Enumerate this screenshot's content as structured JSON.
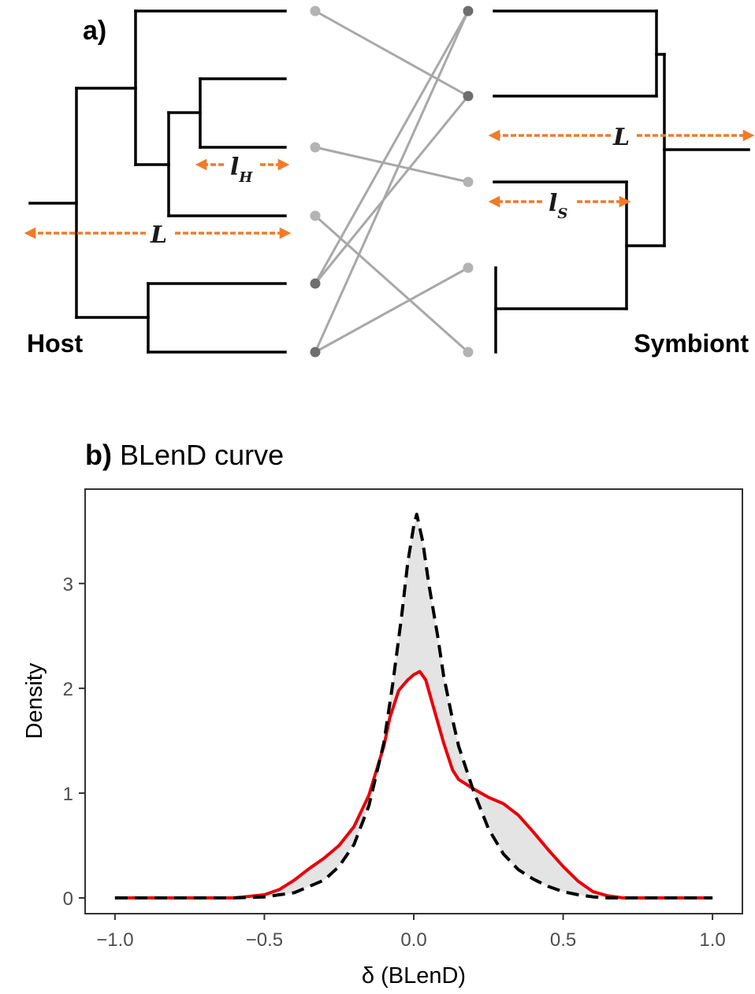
{
  "panel_a": {
    "label": "a)",
    "host_label": "Host",
    "symbiont_label": "Symbiont",
    "host_branch_label": "l",
    "host_branch_subscript": "H",
    "symbiont_branch_label": "l",
    "symbiont_branch_subscript": "S",
    "total_length_label": "L",
    "colors": {
      "tree": "#000000",
      "arrow": "#f07b2a",
      "link": "#a8a8a8",
      "tip_dark": "#6e6e6e",
      "tip_light": "#b3b3b3"
    }
  },
  "panel_b": {
    "label_bold": "b)",
    "label_rest": " BLenD curve"
  },
  "chart_data": {
    "type": "line",
    "title": "BLenD curve",
    "xlabel": "δ (BLenD)",
    "ylabel": "Density",
    "xlim": [
      -1.1,
      1.1
    ],
    "ylim": [
      -0.15,
      3.9
    ],
    "xticks": [
      -1.0,
      -0.5,
      0.0,
      0.5,
      1.0
    ],
    "xtick_labels": [
      "−1.0",
      "−0.5",
      "0.0",
      "0.5",
      "1.0"
    ],
    "yticks": [
      0,
      1,
      2,
      3
    ],
    "ytick_labels": [
      "0",
      "1",
      "2",
      "3"
    ],
    "grid": false,
    "series": [
      {
        "style": "solid",
        "color": "#e8000b",
        "points": [
          [
            -1.0,
            0.0
          ],
          [
            -0.6,
            0.0
          ],
          [
            -0.5,
            0.03
          ],
          [
            -0.45,
            0.08
          ],
          [
            -0.4,
            0.17
          ],
          [
            -0.35,
            0.28
          ],
          [
            -0.3,
            0.38
          ],
          [
            -0.25,
            0.5
          ],
          [
            -0.2,
            0.68
          ],
          [
            -0.15,
            0.98
          ],
          [
            -0.1,
            1.45
          ],
          [
            -0.08,
            1.72
          ],
          [
            -0.05,
            1.98
          ],
          [
            -0.02,
            2.08
          ],
          [
            0.0,
            2.13
          ],
          [
            0.02,
            2.16
          ],
          [
            0.04,
            2.08
          ],
          [
            0.07,
            1.78
          ],
          [
            0.1,
            1.48
          ],
          [
            0.13,
            1.22
          ],
          [
            0.15,
            1.13
          ],
          [
            0.2,
            1.04
          ],
          [
            0.25,
            0.96
          ],
          [
            0.3,
            0.9
          ],
          [
            0.35,
            0.79
          ],
          [
            0.4,
            0.63
          ],
          [
            0.45,
            0.46
          ],
          [
            0.5,
            0.3
          ],
          [
            0.55,
            0.16
          ],
          [
            0.6,
            0.06
          ],
          [
            0.65,
            0.02
          ],
          [
            0.7,
            0.0
          ],
          [
            1.0,
            0.0
          ]
        ]
      },
      {
        "style": "dashed",
        "color": "#000000",
        "points": [
          [
            -1.0,
            0.0
          ],
          [
            -0.6,
            0.0
          ],
          [
            -0.5,
            0.01
          ],
          [
            -0.4,
            0.05
          ],
          [
            -0.3,
            0.17
          ],
          [
            -0.25,
            0.3
          ],
          [
            -0.2,
            0.51
          ],
          [
            -0.15,
            0.88
          ],
          [
            -0.1,
            1.48
          ],
          [
            -0.07,
            2.05
          ],
          [
            -0.04,
            2.7
          ],
          [
            -0.02,
            3.2
          ],
          [
            0.0,
            3.55
          ],
          [
            0.01,
            3.66
          ],
          [
            0.03,
            3.4
          ],
          [
            0.05,
            3.0
          ],
          [
            0.08,
            2.5
          ],
          [
            0.1,
            2.12
          ],
          [
            0.13,
            1.7
          ],
          [
            0.15,
            1.45
          ],
          [
            0.2,
            1.02
          ],
          [
            0.25,
            0.66
          ],
          [
            0.3,
            0.42
          ],
          [
            0.35,
            0.27
          ],
          [
            0.4,
            0.18
          ],
          [
            0.45,
            0.11
          ],
          [
            0.5,
            0.06
          ],
          [
            0.55,
            0.03
          ],
          [
            0.6,
            0.01
          ],
          [
            0.65,
            0.0
          ],
          [
            1.0,
            0.0
          ]
        ]
      }
    ]
  }
}
